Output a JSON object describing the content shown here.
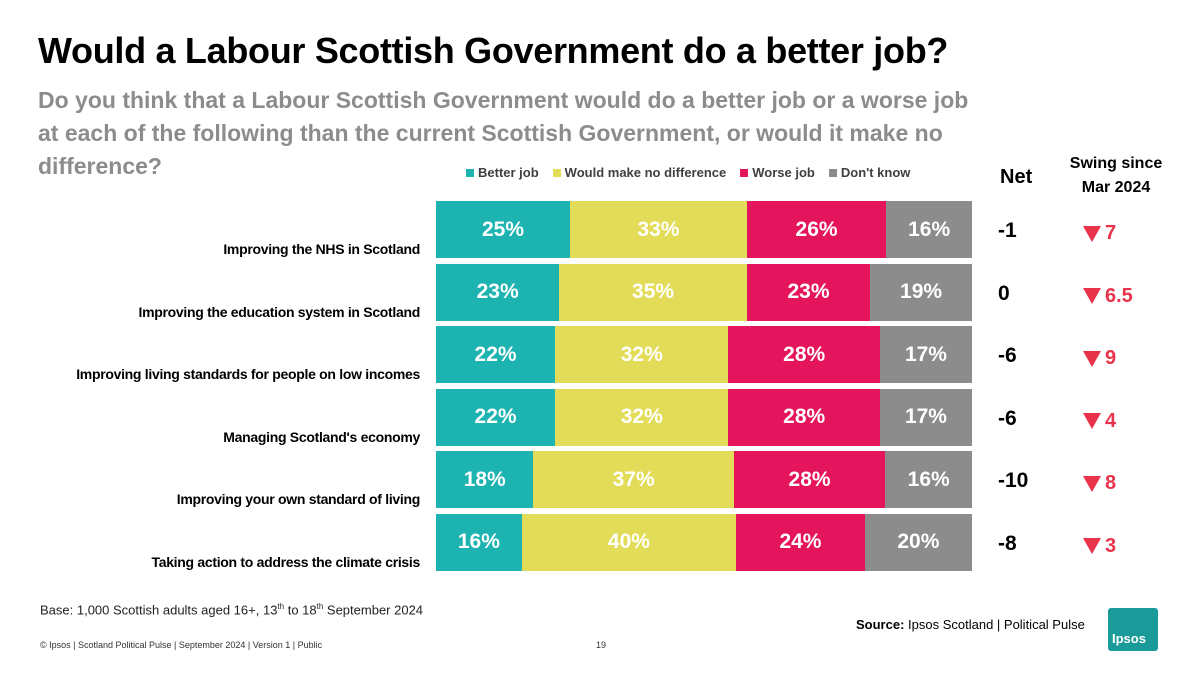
{
  "title": "Would a Labour Scottish Government do a better job?",
  "subtitle": "Do you think that a Labour Scottish Government would do a better job or a worse job at each of the following than the current Scottish Government, or would it make no difference?",
  "colors": {
    "better": "#1cb3b0",
    "nodiff": "#e3dc58",
    "worse": "#e5155d",
    "dontknow": "#8c8c8c",
    "swing": "#e8334a"
  },
  "net_header": "Net",
  "swing_header_line1": "Swing since",
  "swing_header_line2": "Mar 2024",
  "chart_data": {
    "type": "bar",
    "orientation": "horizontal",
    "stacked": true,
    "legend_position": "top",
    "categories": [
      "Improving the NHS in Scotland",
      "Improving the education system in Scotland",
      "Improving living standards for people on low incomes",
      "Managing Scotland's economy",
      "Improving your own standard of living",
      "Taking action to address the climate crisis"
    ],
    "series": [
      {
        "name": "Better job",
        "values": [
          25,
          23,
          22,
          22,
          18,
          16
        ],
        "labels": [
          "25%",
          "23%",
          "22%",
          "22%",
          "18%",
          "16%"
        ]
      },
      {
        "name": "Would make no difference",
        "values": [
          33,
          35,
          32,
          32,
          37,
          40
        ],
        "labels": [
          "33%",
          "35%",
          "32%",
          "32%",
          "37%",
          "40%"
        ]
      },
      {
        "name": "Worse job",
        "values": [
          26,
          23,
          28,
          28,
          28,
          24
        ],
        "labels": [
          "26%",
          "23%",
          "28%",
          "28%",
          "28%",
          "24%"
        ]
      },
      {
        "name": "Don't know",
        "values": [
          16,
          19,
          17,
          17,
          16,
          20
        ],
        "labels": [
          "16%",
          "19%",
          "17%",
          "17%",
          "16%",
          "20%"
        ]
      }
    ],
    "net": [
      "-1",
      "0",
      "-6",
      "-6",
      "-10",
      "-8"
    ],
    "swing": [
      "7",
      "6.5",
      "9",
      "4",
      "8",
      "3"
    ]
  },
  "base_text": "Base: 1,000 Scottish adults aged 16+,  13",
  "base_sup1": "th",
  "base_mid": " to 18",
  "base_sup2": "th",
  "base_end": " September 2024",
  "source_label": "Source:",
  "source_text": " Ipsos Scotland | Political Pulse",
  "footer": "© Ipsos | Scotland Political Pulse | September 2024 | Version 1 | Public",
  "page_number": "19",
  "logo_text": "Ipsos"
}
